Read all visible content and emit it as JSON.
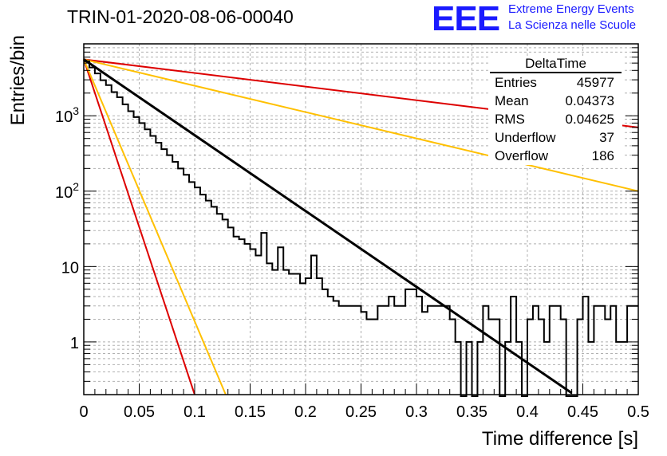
{
  "chart_data": {
    "type": "line",
    "title": "TRIN-01-2020-08-06-00040",
    "xlabel": "Time difference [s]",
    "ylabel": "Entries/bin",
    "xlim": [
      0,
      0.5
    ],
    "ylim": [
      0.2,
      9000
    ],
    "yscale": "log",
    "grid": true,
    "x_ticks": [
      "0",
      "0.05",
      "0.1",
      "0.15",
      "0.2",
      "0.25",
      "0.3",
      "0.35",
      "0.4",
      "0.45",
      "0.5"
    ],
    "y_ticks": [
      "1",
      "10",
      "10^2",
      "10^3"
    ],
    "histogram": {
      "name": "DeltaTime",
      "bin_width": 0.005,
      "counts": [
        5280,
        4370,
        3640,
        2960,
        2550,
        2060,
        1760,
        1420,
        1150,
        960,
        800,
        660,
        540,
        440,
        360,
        300,
        245,
        200,
        165,
        132,
        112,
        90,
        75,
        62,
        50,
        42,
        33,
        25,
        23,
        20,
        17,
        14,
        28,
        11,
        9,
        18,
        9,
        8,
        8,
        6,
        7,
        14,
        7,
        5,
        4,
        3.5,
        3,
        3,
        3,
        3,
        2.5,
        2,
        2,
        3,
        3,
        4,
        3,
        3,
        5,
        5,
        4,
        2.5,
        3,
        3,
        3,
        3,
        2,
        1,
        0,
        1,
        0,
        1,
        3,
        2,
        2,
        0,
        1,
        4,
        1,
        0,
        2,
        3,
        2,
        1,
        3,
        3,
        2,
        0,
        0,
        2,
        4,
        1,
        3,
        3,
        2,
        3,
        1,
        1,
        3,
        3
      ]
    },
    "series": [
      {
        "type": "fit",
        "color": "#000000",
        "x": [
          0,
          0.44
        ],
        "y": [
          5600,
          0.21
        ]
      },
      {
        "type": "reference",
        "color": "#dd0000",
        "x": [
          0,
          0.5
        ],
        "y": [
          5600,
          700
        ]
      },
      {
        "type": "reference",
        "color": "#ffc000",
        "x": [
          0,
          0.5
        ],
        "y": [
          5600,
          100
        ]
      },
      {
        "type": "reference",
        "color": "#dd0000",
        "x": [
          0,
          0.1
        ],
        "y": [
          5600,
          0.2
        ]
      },
      {
        "type": "reference",
        "color": "#ffc000",
        "x": [
          0,
          0.128
        ],
        "y": [
          5600,
          0.2
        ]
      }
    ],
    "stats": {
      "title": "DeltaTime",
      "rows": [
        {
          "label": "Entries",
          "value": "45977"
        },
        {
          "label": "Mean",
          "value": "0.04373"
        },
        {
          "label": "RMS",
          "value": "0.04625"
        },
        {
          "label": "Underflow",
          "value": "37"
        },
        {
          "label": "Overflow",
          "value": "186"
        }
      ]
    }
  },
  "logo": {
    "text": "EEE",
    "line1": "Extreme Energy Events",
    "line2": "La Scienza nelle Scuole"
  }
}
